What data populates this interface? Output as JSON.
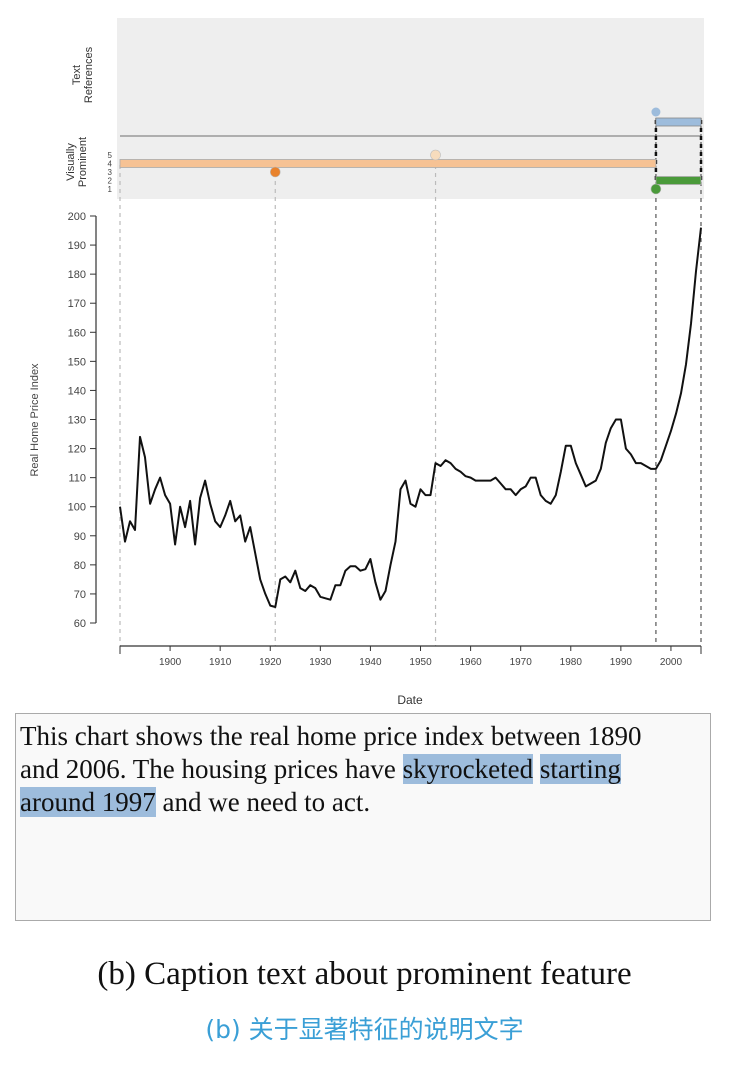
{
  "chart_data": {
    "type": "line",
    "xlabel": "Date",
    "ylabel": "Real Home Price Index",
    "xlim": [
      1890,
      2006
    ],
    "ylim": [
      60,
      200
    ],
    "x_ticks": [
      1900,
      1910,
      1920,
      1930,
      1940,
      1950,
      1960,
      1970,
      1980,
      1990,
      2000
    ],
    "y_ticks": [
      60,
      70,
      80,
      90,
      100,
      110,
      120,
      130,
      140,
      150,
      160,
      170,
      180,
      190,
      200
    ],
    "x": [
      1890,
      1891,
      1892,
      1893,
      1894,
      1895,
      1896,
      1897,
      1898,
      1899,
      1900,
      1901,
      1902,
      1903,
      1904,
      1905,
      1906,
      1907,
      1908,
      1909,
      1910,
      1911,
      1912,
      1913,
      1914,
      1915,
      1916,
      1917,
      1918,
      1919,
      1920,
      1921,
      1922,
      1923,
      1924,
      1925,
      1926,
      1927,
      1928,
      1929,
      1930,
      1931,
      1932,
      1933,
      1934,
      1935,
      1936,
      1937,
      1938,
      1939,
      1940,
      1941,
      1942,
      1943,
      1944,
      1945,
      1946,
      1947,
      1948,
      1949,
      1950,
      1951,
      1952,
      1953,
      1954,
      1955,
      1956,
      1957,
      1958,
      1959,
      1960,
      1961,
      1962,
      1963,
      1964,
      1965,
      1966,
      1967,
      1968,
      1969,
      1970,
      1971,
      1972,
      1973,
      1974,
      1975,
      1976,
      1977,
      1978,
      1979,
      1980,
      1981,
      1982,
      1983,
      1984,
      1985,
      1986,
      1987,
      1988,
      1989,
      1990,
      1991,
      1992,
      1993,
      1994,
      1995,
      1996,
      1997,
      1998,
      1999,
      2000,
      2001,
      2002,
      2003,
      2004,
      2005,
      2006
    ],
    "y": [
      100,
      88,
      95,
      92,
      124,
      117,
      101,
      106,
      110,
      104,
      101,
      87,
      100,
      93,
      102,
      87,
      103,
      109,
      101,
      95,
      93,
      97,
      102,
      95,
      97,
      88,
      93,
      84,
      75,
      70,
      66,
      65.5,
      75,
      76,
      74,
      78,
      72,
      71,
      73,
      72,
      69,
      68.5,
      68,
      73,
      73,
      78,
      79.5,
      79.5,
      78,
      78.5,
      82,
      74,
      68,
      71,
      80,
      88,
      106,
      109,
      101,
      100,
      106,
      104,
      104,
      115,
      114,
      116,
      115,
      113,
      112,
      110.5,
      110,
      109,
      109,
      109,
      109,
      110,
      108,
      106,
      106,
      104,
      106,
      107,
      110,
      110,
      104,
      102,
      101,
      104,
      112,
      121,
      121,
      115,
      111,
      107,
      108,
      109,
      113,
      122,
      127,
      130,
      130,
      120,
      118,
      115,
      115,
      114,
      113,
      113,
      116,
      121,
      126,
      132,
      139,
      149,
      163,
      181,
      196
    ],
    "annotation_panel": {
      "row_labels": [
        "Text References",
        "Visually Prominent"
      ],
      "prominence_ticks": [
        "1",
        "2",
        "3",
        "4",
        "5"
      ],
      "marker_years": [
        1890,
        1921,
        1953,
        1997,
        2006
      ],
      "features": [
        {
          "kind": "text-reference-range",
          "start": 1997,
          "end": 2006,
          "color": "#9dbcdc"
        },
        {
          "kind": "prominent-range",
          "start": 1890,
          "end": 1997,
          "level": 4,
          "color": "#f6c294"
        },
        {
          "kind": "prominent-range",
          "start": 1997,
          "end": 2006,
          "level": 2,
          "color": "#4a9a3a"
        },
        {
          "kind": "prominent-point",
          "year": 1921,
          "level": 3,
          "color": "#e8822c"
        },
        {
          "kind": "prominent-point",
          "year": 1953,
          "level": 5,
          "color": "#f7dcbd"
        },
        {
          "kind": "prominent-point",
          "year": 1997,
          "level": 1,
          "color": "#4a9a3a"
        },
        {
          "kind": "text-reference-point",
          "year": 1997,
          "color": "#9dbcdc"
        }
      ]
    }
  },
  "caption_box": {
    "line1": "This chart shows the real home price index between 1890",
    "line2_a": "and 2006. The housing prices have ",
    "hl1": "skyrocketed",
    "hl2": "starting",
    "hl3": "around 1997",
    "line3_b": " and we need to act."
  },
  "figure_caption": "(b) Caption text about prominent feature",
  "figure_caption_zh": "(b) 关于显著特征的说明文字"
}
